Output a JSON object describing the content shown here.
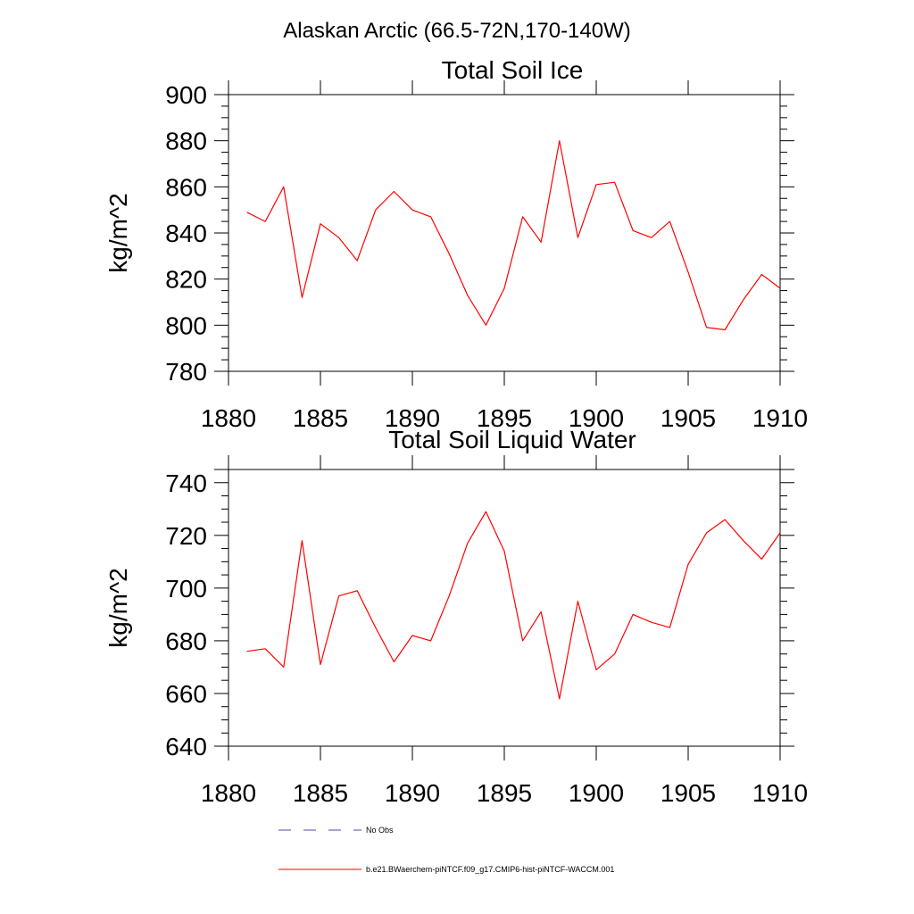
{
  "figure": {
    "title": "Alaskan Arctic (66.5-72N,170-140W)"
  },
  "colors": {
    "model": "#ff0000",
    "obs": "#4a4aa8",
    "axis": "#000000"
  },
  "legend": {
    "obs_label": "No Obs",
    "model_label": "b.e21.BWaerchem-piNTCF.f09_g17.CMIP6-hist-piNTCF-WACCM.001"
  },
  "chart_data": [
    {
      "type": "line",
      "title": "Total Soil Ice",
      "xlabel": "",
      "ylabel": "kg/m^2",
      "xlim": [
        1880,
        1910
      ],
      "ylim": [
        780,
        900
      ],
      "xticks": [
        1880,
        1885,
        1890,
        1895,
        1900,
        1905,
        1910
      ],
      "yticks": [
        780,
        800,
        820,
        840,
        860,
        880,
        900
      ],
      "grid": false,
      "series": [
        {
          "x": [
            1881,
            1882,
            1883,
            1884,
            1885,
            1886,
            1887,
            1888,
            1889,
            1890,
            1891,
            1892,
            1893,
            1894,
            1895,
            1896,
            1897,
            1898,
            1899,
            1900,
            1901,
            1902,
            1903,
            1904,
            1905,
            1906,
            1907,
            1908,
            1909,
            1910
          ],
          "values": [
            849,
            845,
            860,
            812,
            844,
            838,
            828,
            850,
            858,
            850,
            847,
            831,
            813,
            800,
            816,
            847,
            836,
            880,
            838,
            861,
            862,
            841,
            838,
            845,
            823,
            799,
            798,
            811,
            822,
            816
          ]
        }
      ]
    },
    {
      "type": "line",
      "title": "Total Soil Liquid Water",
      "xlabel": "",
      "ylabel": "kg/m^2",
      "xlim": [
        1880,
        1910
      ],
      "ylim": [
        640,
        745
      ],
      "xticks": [
        1880,
        1885,
        1890,
        1895,
        1900,
        1905,
        1910
      ],
      "yticks": [
        640,
        660,
        680,
        700,
        720,
        740
      ],
      "grid": false,
      "series": [
        {
          "x": [
            1881,
            1882,
            1883,
            1884,
            1885,
            1886,
            1887,
            1888,
            1889,
            1890,
            1891,
            1892,
            1893,
            1894,
            1895,
            1896,
            1897,
            1898,
            1899,
            1900,
            1901,
            1902,
            1903,
            1904,
            1905,
            1906,
            1907,
            1908,
            1909,
            1910
          ],
          "values": [
            676,
            677,
            670,
            718,
            671,
            697,
            699,
            685,
            672,
            682,
            680,
            697,
            717,
            729,
            714,
            680,
            691,
            658,
            695,
            669,
            675,
            690,
            687,
            685,
            709,
            721,
            726,
            718,
            711,
            721
          ]
        }
      ]
    }
  ]
}
